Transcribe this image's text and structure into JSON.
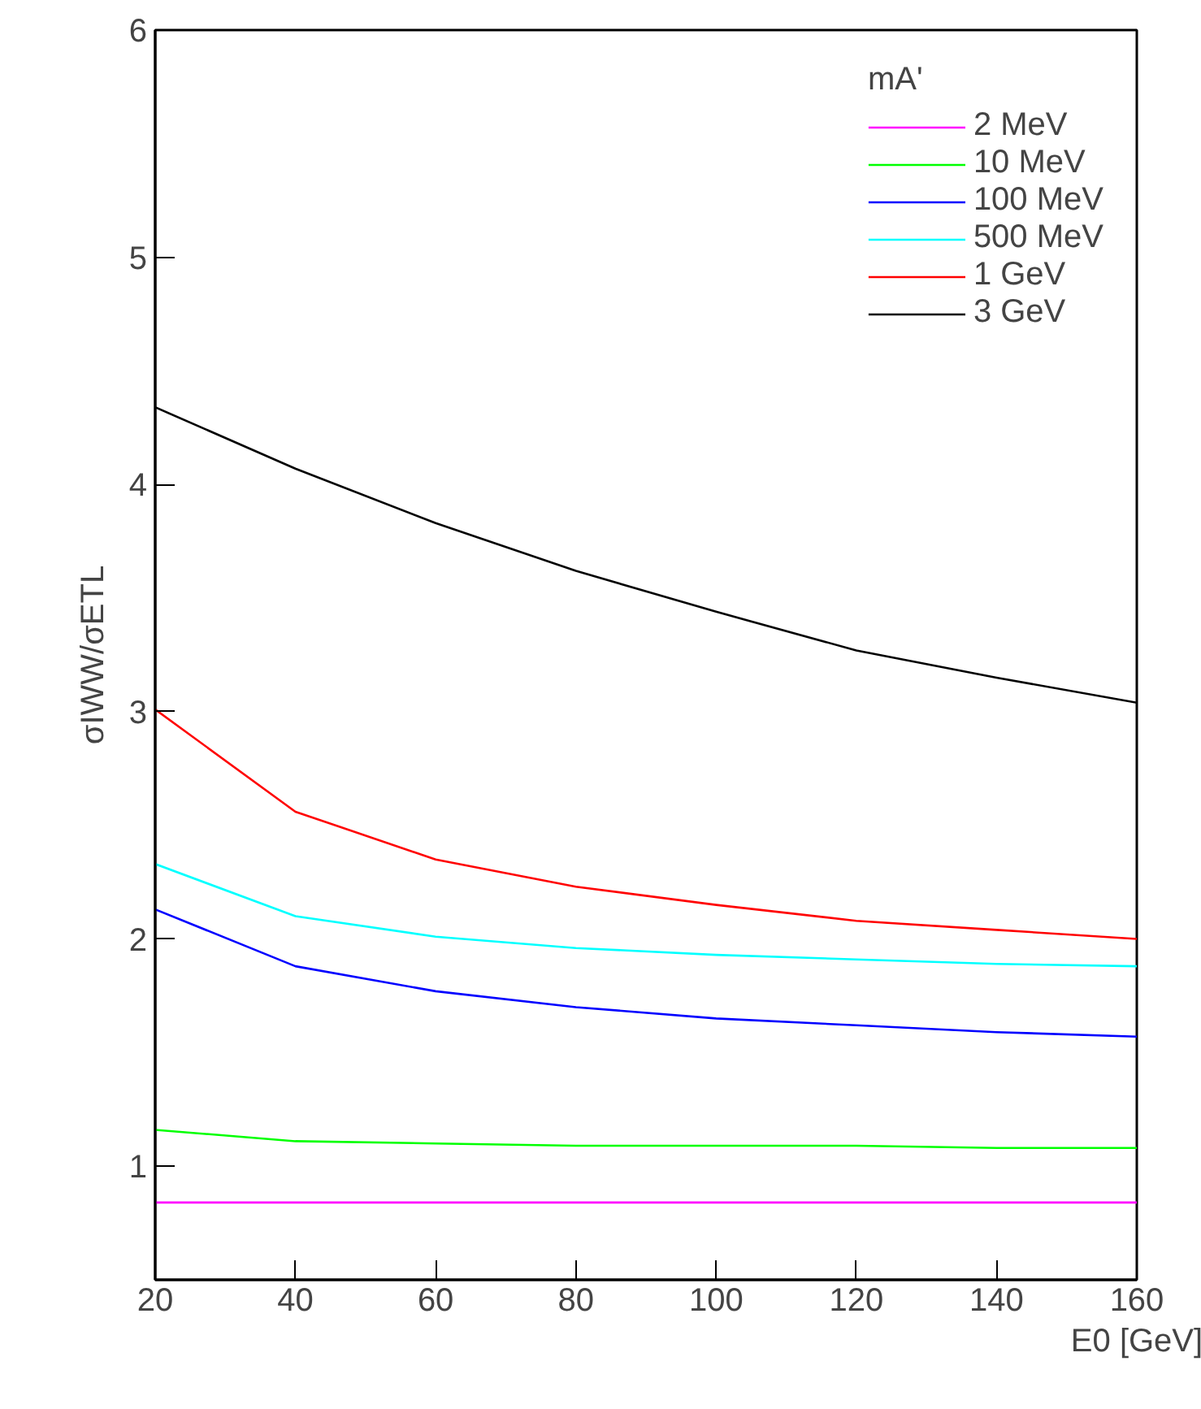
{
  "chart_data": {
    "type": "line",
    "xlabel": "E0 [GeV]",
    "ylabel": "σIWW/σETL",
    "legend_title": "mA'",
    "x": [
      20,
      40,
      60,
      80,
      100,
      120,
      140,
      160
    ],
    "xlim": [
      20,
      160
    ],
    "xticks": [
      20,
      40,
      60,
      80,
      100,
      120,
      140,
      160
    ],
    "ylim": [
      0.5,
      6
    ],
    "yticks": [
      1,
      2,
      3,
      4,
      5,
      6
    ],
    "grid": false,
    "legend": "top right",
    "marker": "none",
    "line_style": "solid",
    "series": [
      {
        "name": "2 MeV",
        "color": "#ff00ff",
        "values": [
          0.84,
          0.84,
          0.84,
          0.84,
          0.84,
          0.84,
          0.84,
          0.84
        ]
      },
      {
        "name": "10 MeV",
        "color": "#00ff00",
        "values": [
          1.16,
          1.11,
          1.1,
          1.09,
          1.09,
          1.09,
          1.08,
          1.08
        ]
      },
      {
        "name": "100 MeV",
        "color": "#0000ff",
        "values": [
          2.13,
          1.88,
          1.77,
          1.7,
          1.65,
          1.62,
          1.59,
          1.57
        ]
      },
      {
        "name": "500 MeV",
        "color": "#00ffff",
        "values": [
          2.33,
          2.1,
          2.01,
          1.96,
          1.93,
          1.91,
          1.89,
          1.88
        ]
      },
      {
        "name": "1 GeV",
        "color": "#ff0000",
        "values": [
          3.01,
          2.56,
          2.35,
          2.23,
          2.15,
          2.08,
          2.04,
          2.0
        ]
      },
      {
        "name": "3 GeV",
        "color": "#000000",
        "values": [
          4.34,
          4.07,
          3.83,
          3.62,
          3.44,
          3.27,
          3.15,
          3.04
        ]
      }
    ]
  }
}
